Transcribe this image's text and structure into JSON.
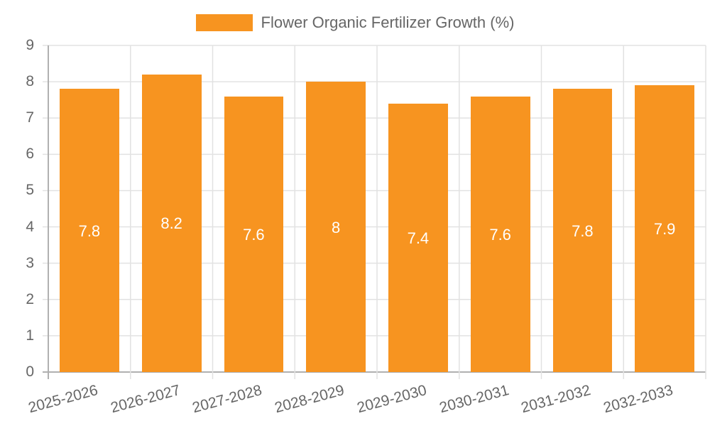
{
  "chart_data": {
    "type": "bar",
    "title": "",
    "legend": [
      "Flower Organic Fertilizer Growth (%)"
    ],
    "legend_position": "top",
    "categories": [
      "2025-2026",
      "2026-2027",
      "2027-2028",
      "2028-2029",
      "2029-2030",
      "2030-2031",
      "2031-2032",
      "2032-2033"
    ],
    "series": [
      {
        "name": "Flower Organic Fertilizer Growth (%)",
        "values": [
          7.8,
          8.2,
          7.6,
          8,
          7.4,
          7.6,
          7.8,
          7.9
        ],
        "color": "#f79420"
      }
    ],
    "data_labels": [
      "7.8",
      "8.2",
      "7.6",
      "8",
      "7.4",
      "7.6",
      "7.8",
      "7.9"
    ],
    "xlabel": "",
    "ylabel": "",
    "ylim": [
      0,
      9
    ],
    "yticks": [
      0,
      1,
      2,
      3,
      4,
      5,
      6,
      7,
      8,
      9
    ],
    "grid": true
  },
  "legend": {
    "label": "Flower Organic Fertilizer Growth (%)",
    "color": "#f79420"
  }
}
